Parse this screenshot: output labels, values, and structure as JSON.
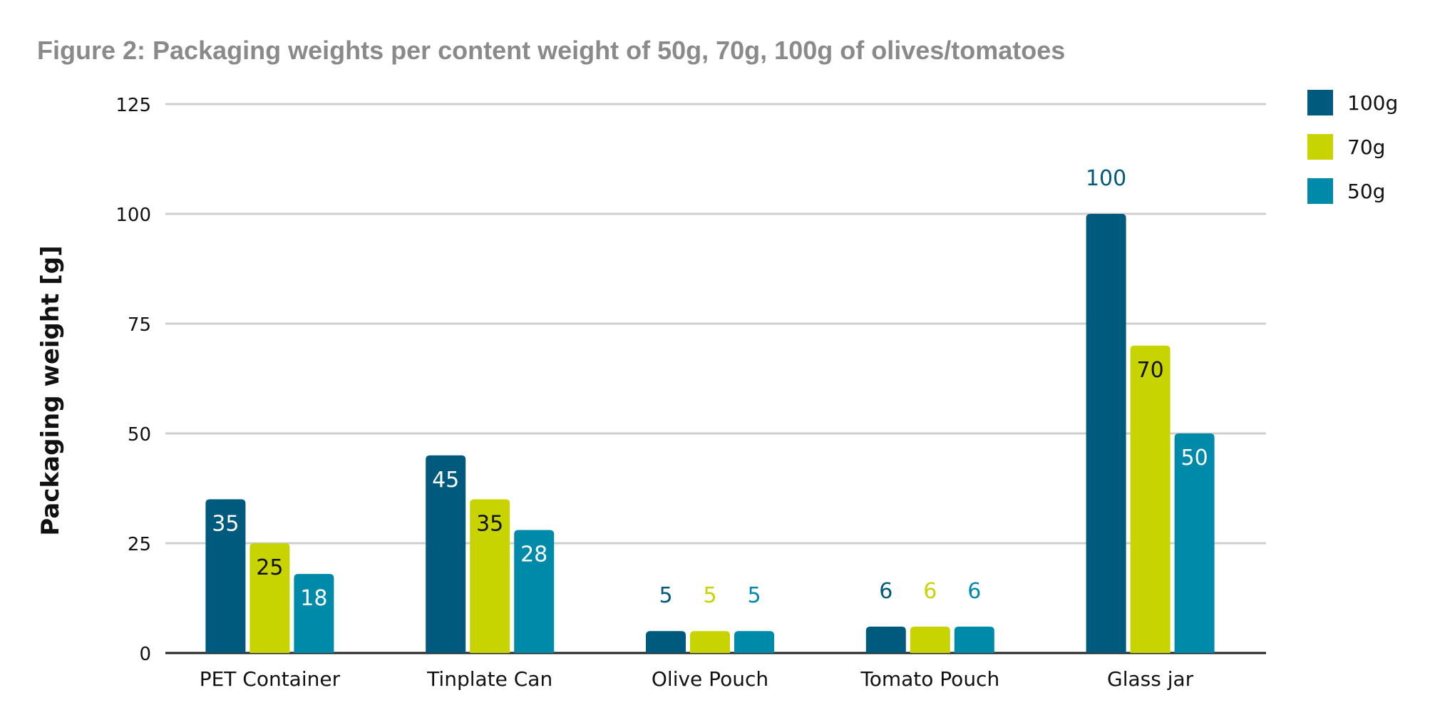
{
  "chart_data": {
    "type": "bar",
    "title": "Figure 2: Packaging weights per content weight of 50g, 70g, 100g of olives/tomatoes",
    "xlabel": "",
    "ylabel": "Packaging weight [g]",
    "ylim": [
      0,
      125
    ],
    "yticks": [
      0,
      25,
      50,
      75,
      100,
      125
    ],
    "grid": true,
    "legend_position": "top-right",
    "categories": [
      "PET Container",
      "Tinplate Can",
      "Olive Pouch",
      "Tomato Pouch",
      "Glass jar"
    ],
    "series": [
      {
        "name": "100g",
        "color": "#005a7d",
        "values": [
          35,
          45,
          5,
          6,
          100
        ]
      },
      {
        "name": "70g",
        "color": "#c8d400",
        "values": [
          25,
          35,
          5,
          6,
          70
        ]
      },
      {
        "name": "50g",
        "color": "#008aaa",
        "values": [
          18,
          28,
          5,
          6,
          50
        ]
      }
    ]
  }
}
